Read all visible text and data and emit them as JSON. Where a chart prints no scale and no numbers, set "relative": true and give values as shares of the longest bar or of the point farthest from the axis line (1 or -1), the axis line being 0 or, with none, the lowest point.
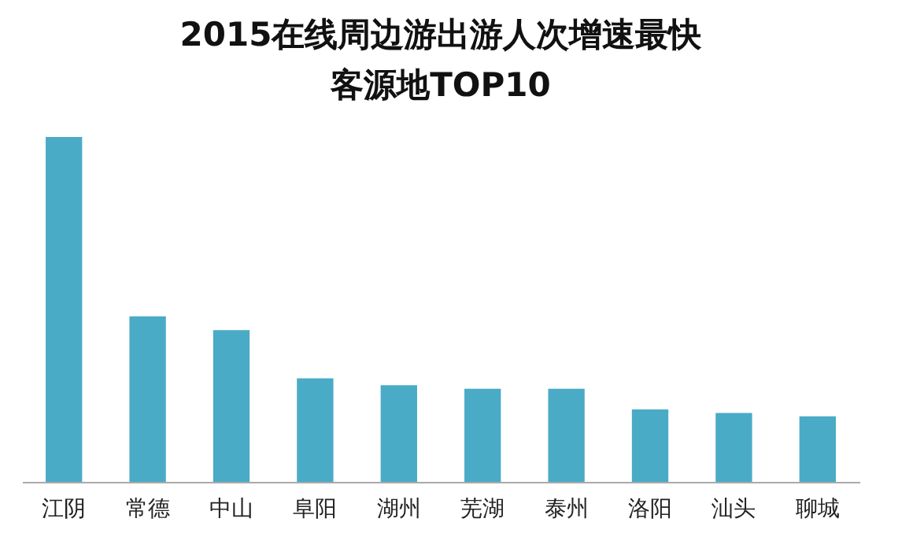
{
  "chart_data": {
    "type": "bar",
    "title": "2015在线周边游出游人次增速最快客源地TOP10",
    "relative": true,
    "categories": [
      "江阴",
      "常德",
      "中山",
      "阜阳",
      "湖州",
      "芜湖",
      "泰州",
      "洛阳",
      "汕头",
      "聊城"
    ],
    "values": [
      1,
      0.48,
      0.44,
      0.3,
      0.28,
      0.27,
      0.27,
      0.21,
      0.2,
      0.19
    ],
    "color": "#4aabc6",
    "grid": false
  }
}
